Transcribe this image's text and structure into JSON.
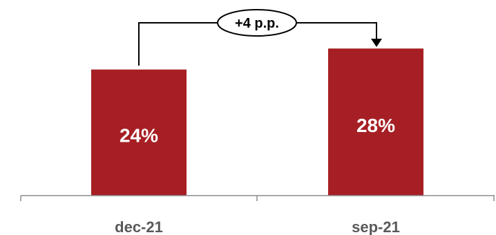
{
  "chart_data": {
    "type": "bar",
    "categories": [
      "dec-21",
      "sep-21"
    ],
    "values": [
      24,
      28
    ],
    "data_labels": [
      "24%",
      "28%"
    ],
    "annotation": "+4 p.p.",
    "title": "",
    "xlabel": "",
    "ylabel": "",
    "ylim": [
      0,
      40
    ],
    "grid": false,
    "bar_color": "#a61f24"
  }
}
